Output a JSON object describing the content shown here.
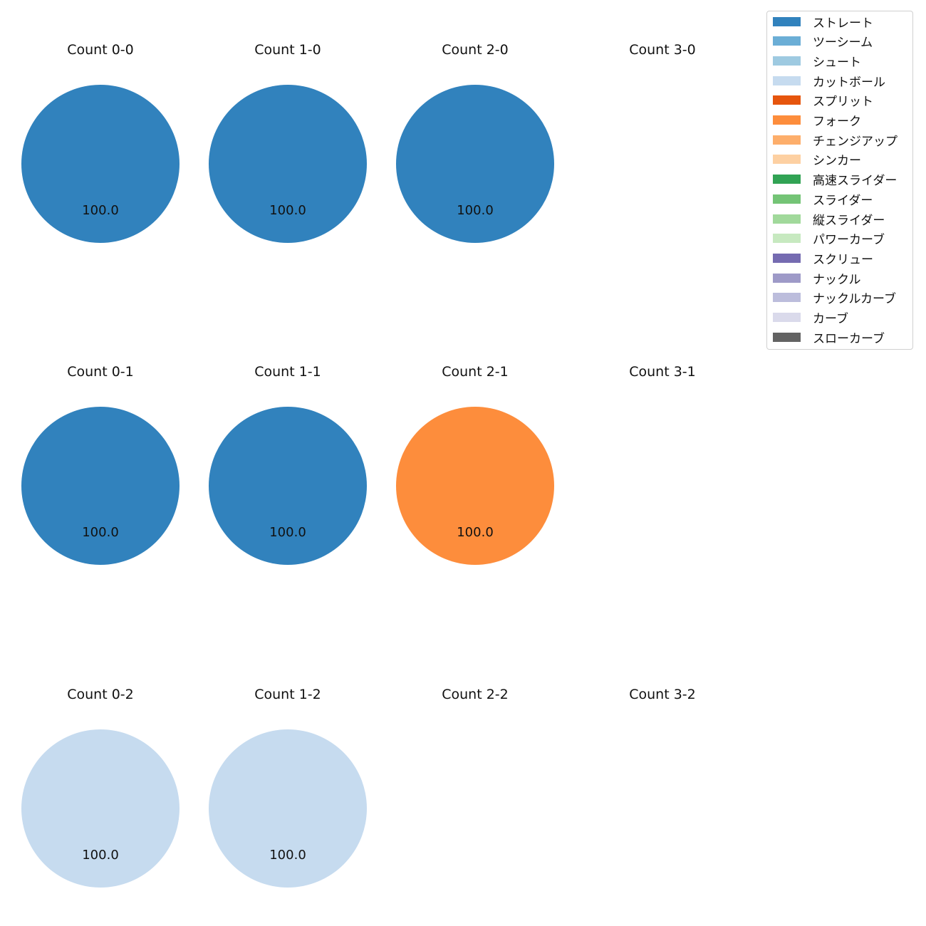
{
  "chart_data": {
    "type": "pie",
    "legend": {
      "placement": "top-right",
      "entries": [
        {
          "label": "ストレート",
          "color": "#3182bd"
        },
        {
          "label": "ツーシーム",
          "color": "#6baed6"
        },
        {
          "label": "シュート",
          "color": "#9ecae1"
        },
        {
          "label": "カットボール",
          "color": "#c6dbef"
        },
        {
          "label": "スプリット",
          "color": "#e6550d"
        },
        {
          "label": "フォーク",
          "color": "#fd8d3c"
        },
        {
          "label": "チェンジアップ",
          "color": "#fdae6b"
        },
        {
          "label": "シンカー",
          "color": "#fdd0a2"
        },
        {
          "label": "高速スライダー",
          "color": "#31a354"
        },
        {
          "label": "スライダー",
          "color": "#74c476"
        },
        {
          "label": "縦スライダー",
          "color": "#a1d99b"
        },
        {
          "label": "パワーカーブ",
          "color": "#c7e9c0"
        },
        {
          "label": "スクリュー",
          "color": "#756bb1"
        },
        {
          "label": "ナックル",
          "color": "#9e9ac8"
        },
        {
          "label": "ナックルカーブ",
          "color": "#bcbddc"
        },
        {
          "label": "カーブ",
          "color": "#dadaeb"
        },
        {
          "label": "スローカーブ",
          "color": "#636363"
        }
      ]
    },
    "panels": [
      {
        "title": "Count 0-0",
        "slices": [
          {
            "label": "ストレート",
            "value": 100.0
          }
        ]
      },
      {
        "title": "Count 1-0",
        "slices": [
          {
            "label": "ストレート",
            "value": 100.0
          }
        ]
      },
      {
        "title": "Count 2-0",
        "slices": [
          {
            "label": "ストレート",
            "value": 100.0
          }
        ]
      },
      {
        "title": "Count 3-0",
        "slices": []
      },
      {
        "title": "Count 0-1",
        "slices": [
          {
            "label": "ストレート",
            "value": 100.0
          }
        ]
      },
      {
        "title": "Count 1-1",
        "slices": [
          {
            "label": "ストレート",
            "value": 100.0
          }
        ]
      },
      {
        "title": "Count 2-1",
        "slices": [
          {
            "label": "フォーク",
            "value": 100.0
          }
        ]
      },
      {
        "title": "Count 3-1",
        "slices": []
      },
      {
        "title": "Count 0-2",
        "slices": [
          {
            "label": "カットボール",
            "value": 100.0
          }
        ]
      },
      {
        "title": "Count 1-2",
        "slices": [
          {
            "label": "カットボール",
            "value": 100.0
          }
        ]
      },
      {
        "title": "Count 2-2",
        "slices": []
      },
      {
        "title": "Count 3-2",
        "slices": []
      }
    ]
  }
}
